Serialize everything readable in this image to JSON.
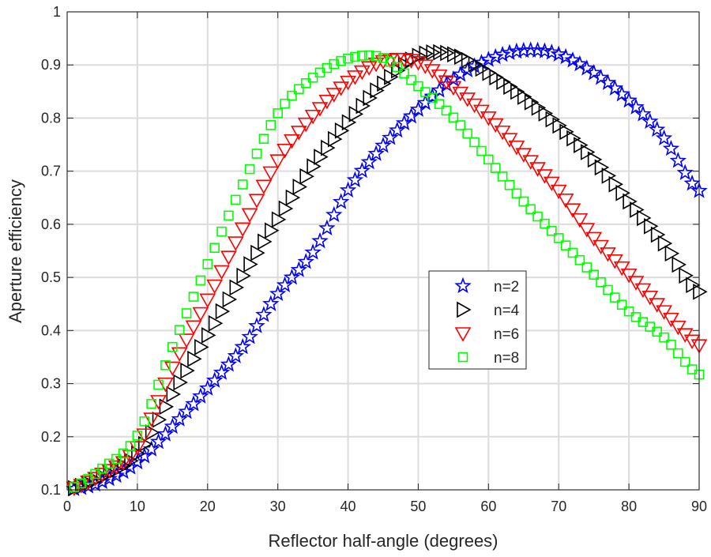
{
  "chart_data": {
    "type": "scatter",
    "title": "",
    "xlabel": "Reflector half-angle (degrees)",
    "ylabel": "Aperture efficiency",
    "xlim": [
      0,
      90
    ],
    "ylim": [
      0.1,
      1
    ],
    "xticks": [
      "0",
      "10",
      "20",
      "30",
      "40",
      "50",
      "60",
      "70",
      "80",
      "90"
    ],
    "yticks": [
      "0.1",
      "0.2",
      "0.3",
      "0.4",
      "0.5",
      "0.6",
      "0.7",
      "0.8",
      "0.9",
      "1"
    ],
    "grid": true,
    "legend_position": "center-right",
    "marker_x_range": [
      1,
      90
    ],
    "knots_x": [
      0,
      5,
      10,
      15,
      20,
      25,
      30,
      35,
      40,
      45,
      50,
      55,
      60,
      65,
      70,
      75,
      80,
      85,
      90
    ],
    "series": [
      {
        "name": "n=2",
        "marker": "star",
        "color": "#0000ff",
        "values": [
          0.1,
          0.115,
          0.152,
          0.219,
          0.291,
          0.369,
          0.469,
          0.547,
          0.664,
          0.748,
          0.816,
          0.873,
          0.91,
          0.927,
          0.92,
          0.885,
          0.833,
          0.762,
          0.663
        ]
      },
      {
        "name": "n=4",
        "marker": "triangle-right",
        "color": "#000000",
        "values": [
          0.1,
          0.125,
          0.168,
          0.28,
          0.391,
          0.503,
          0.609,
          0.709,
          0.792,
          0.865,
          0.917,
          0.92,
          0.885,
          0.84,
          0.786,
          0.722,
          0.643,
          0.564,
          0.473
        ]
      },
      {
        "name": "n=6",
        "marker": "triangle-down",
        "color": "#ff0000",
        "values": [
          0.1,
          0.13,
          0.18,
          0.33,
          0.458,
          0.592,
          0.72,
          0.804,
          0.868,
          0.907,
          0.905,
          0.858,
          0.801,
          0.732,
          0.663,
          0.574,
          0.505,
          0.436,
          0.372
        ]
      },
      {
        "name": "n=8",
        "marker": "square",
        "color": "#00ff00",
        "values": [
          0.1,
          0.14,
          0.202,
          0.369,
          0.525,
          0.675,
          0.809,
          0.876,
          0.912,
          0.913,
          0.86,
          0.801,
          0.722,
          0.643,
          0.574,
          0.505,
          0.436,
          0.387,
          0.317
        ]
      }
    ]
  }
}
